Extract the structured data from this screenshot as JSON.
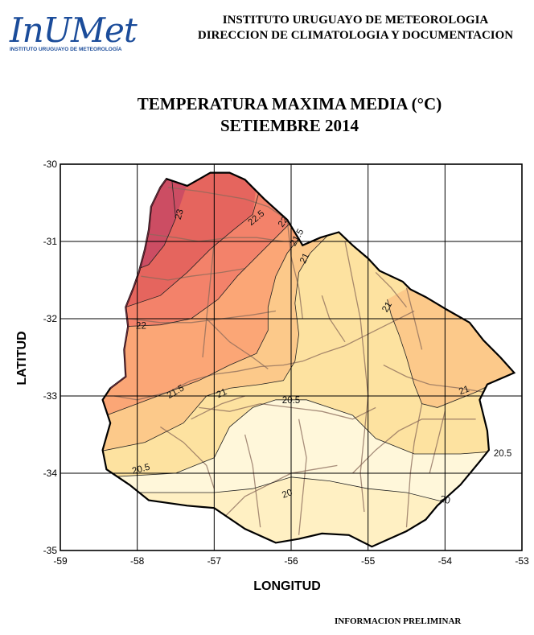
{
  "logo": {
    "wordmark": "InUMet",
    "subtitle": "INSTITUTO URUGUAYO DE METEOROLOGÍA",
    "color": "#1b4c9a"
  },
  "header": {
    "line1": "INSTITUTO URUGUAYO DE METEOROLOGIA",
    "line2": "DIRECCION DE CLIMATOLOGIA Y DOCUMENTACION"
  },
  "title": {
    "line1": "TEMPERATURA MAXIMA MEDIA (°C)",
    "line2": "SETIEMBRE 2014"
  },
  "axes": {
    "xlabel": "LONGITUD",
    "ylabel": "LATITUD",
    "x_range": [
      -59,
      -53
    ],
    "y_range": [
      -35,
      -30
    ],
    "x_ticks": [
      -59,
      -58,
      -57,
      -56,
      -55,
      -54,
      -53
    ],
    "y_ticks": [
      -30,
      -31,
      -32,
      -33,
      -34,
      -35
    ],
    "grid": true
  },
  "contours": {
    "labels": [
      {
        "text": "23",
        "lon": -57.45,
        "lat": -30.65,
        "rot": -75
      },
      {
        "text": "22.5",
        "lon": -56.45,
        "lat": -30.7,
        "rot": -40
      },
      {
        "text": "22",
        "lon": -56.1,
        "lat": -30.75,
        "rot": -55
      },
      {
        "text": "21.5",
        "lon": -55.92,
        "lat": -30.95,
        "rot": -60
      },
      {
        "text": "21",
        "lon": -55.82,
        "lat": -31.22,
        "rot": -65
      },
      {
        "text": "21",
        "lon": -54.75,
        "lat": -31.85,
        "rot": -60
      },
      {
        "text": "22",
        "lon": -57.95,
        "lat": -32.1,
        "rot": 0
      },
      {
        "text": "21.5",
        "lon": -57.5,
        "lat": -32.95,
        "rot": -30
      },
      {
        "text": "21",
        "lon": -56.9,
        "lat": -32.97,
        "rot": -25
      },
      {
        "text": "20.5",
        "lon": -56.0,
        "lat": -33.06,
        "rot": 0
      },
      {
        "text": "21",
        "lon": -53.75,
        "lat": -32.93,
        "rot": -20
      },
      {
        "text": "20.5",
        "lon": -53.25,
        "lat": -33.75,
        "rot": 0
      },
      {
        "text": "20.5",
        "lon": -57.95,
        "lat": -33.95,
        "rot": -15
      },
      {
        "text": "20",
        "lon": -56.05,
        "lat": -34.27,
        "rot": -20
      },
      {
        "text": "20",
        "lon": -54.0,
        "lat": -34.35,
        "rot": 15
      }
    ]
  },
  "colors": {
    "t23": "#cc4d63",
    "t225": "#e5655e",
    "t22": "#f3826a",
    "t215": "#fba676",
    "t21": "#fcc98a",
    "t205": "#fde2a0",
    "t20": "#fff0c3",
    "t_le20": "#fff7da"
  },
  "footer": "INFORMACION PRELIMINAR"
}
